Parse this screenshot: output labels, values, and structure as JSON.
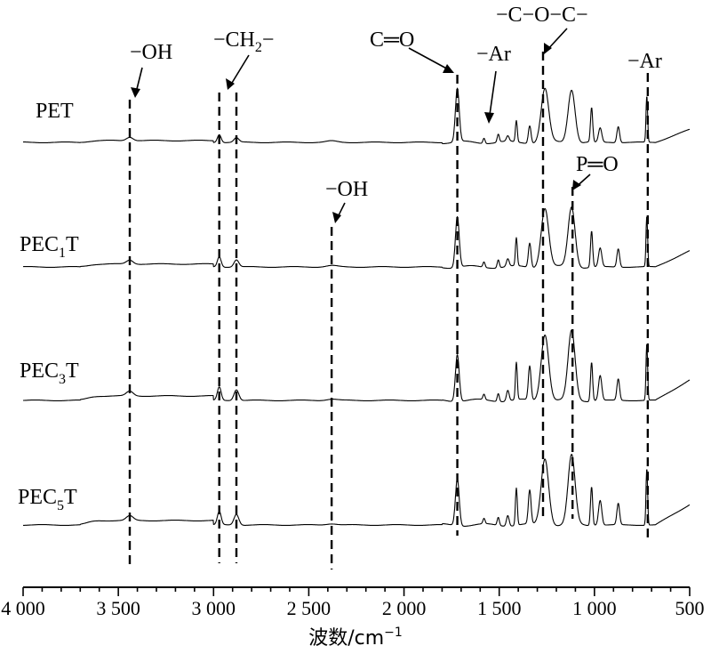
{
  "chart_data": {
    "type": "line",
    "xlabel": "波数/cm",
    "xlabel_superscript": "−1",
    "xlim": [
      4000,
      500
    ],
    "xticks": [
      4000,
      3500,
      3000,
      2500,
      2000,
      1500,
      1000,
      500
    ],
    "xtick_labels": [
      "4 000",
      "3 500",
      "3 000",
      "2 500",
      "2 000",
      "1 500",
      "1 000",
      "500"
    ],
    "y_axis_shown": false,
    "legend": "none",
    "series": [
      {
        "name": "PET",
        "label_main": "PET",
        "label_sub": "",
        "label_tail": "",
        "offset": 3
      },
      {
        "name": "PEC1T",
        "label_main": "PEC",
        "label_sub": "1",
        "label_tail": "T",
        "offset": 2
      },
      {
        "name": "PEC3T",
        "label_main": "PEC",
        "label_sub": "3",
        "label_tail": "T",
        "offset": 1
      },
      {
        "name": "PEC5T",
        "label_main": "PEC",
        "label_sub": "5",
        "label_tail": "T",
        "offset": 0
      }
    ],
    "marker_lines": [
      {
        "wavenumber": 3440,
        "assignment": "−OH"
      },
      {
        "wavenumber": 2970,
        "assignment": "−CH2−"
      },
      {
        "wavenumber": 2880,
        "assignment": "−CH2−"
      },
      {
        "wavenumber": 2380,
        "assignment": "−OH"
      },
      {
        "wavenumber": 1720,
        "assignment": "C=O"
      },
      {
        "wavenumber": 1270,
        "assignment": "−C−O−C−"
      },
      {
        "wavenumber": 1115,
        "assignment": "P=O"
      },
      {
        "wavenumber": 720,
        "assignment": "−Ar"
      }
    ],
    "annotations": [
      {
        "id": "oh1",
        "text": "−OH"
      },
      {
        "id": "ch2",
        "text": "−CH",
        "sub": "2",
        "tail": "−"
      },
      {
        "id": "co",
        "text": "C═O"
      },
      {
        "id": "ar1",
        "text": "−Ar"
      },
      {
        "id": "coc",
        "text": "−C−O−C−"
      },
      {
        "id": "ar2",
        "text": "−Ar"
      },
      {
        "id": "oh2",
        "text": "−OH"
      },
      {
        "id": "po",
        "text": "P═O"
      }
    ]
  }
}
